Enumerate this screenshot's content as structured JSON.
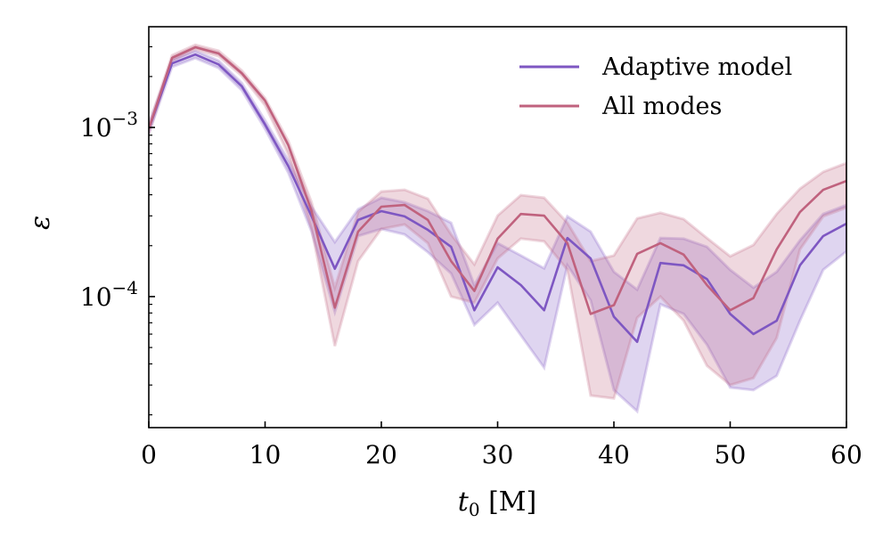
{
  "chart_data": {
    "type": "line",
    "xlabel_main": "t",
    "xlabel_sub": "0",
    "xlabel_unit": " [M]",
    "ylabel": "ε",
    "xlim": [
      0,
      60
    ],
    "ylim": [
      1.68e-05,
      0.00394
    ],
    "yscale": "log",
    "grid": false,
    "legend_position": "top-right",
    "x_ticks": [
      "0",
      "10",
      "20",
      "30",
      "40",
      "50",
      "60"
    ],
    "y_ticks": [
      {
        "base": "10",
        "exp": "−3",
        "value": 0.001
      },
      {
        "base": "10",
        "exp": "−4",
        "value": 0.0001
      }
    ],
    "x": [
      0,
      2,
      4,
      6,
      8,
      10,
      12,
      14,
      16,
      18,
      20,
      22,
      24,
      26,
      28,
      30,
      32,
      34,
      36,
      38,
      40,
      42,
      44,
      46,
      48,
      50,
      52,
      54,
      56,
      58,
      60
    ],
    "series": [
      {
        "name": "Adaptive model",
        "color": "#7e57c2",
        "values": [
          0.00098,
          0.00239,
          0.0027,
          0.00236,
          0.00175,
          0.00104,
          0.00059,
          0.000298,
          0.000146,
          0.000284,
          0.00032,
          0.000298,
          0.000248,
          0.000197,
          8.3e-05,
          0.000149,
          0.000117,
          8.3e-05,
          0.000222,
          0.000168,
          7.6e-05,
          5.4e-05,
          0.000158,
          0.000153,
          0.000127,
          7.9e-05,
          6e-05,
          7.2e-05,
          0.000153,
          0.000228,
          0.00027
        ],
        "lower": [
          0.00092,
          0.00228,
          0.00257,
          0.00225,
          0.00166,
          0.00098,
          0.00054,
          0.000242,
          8.1e-05,
          0.000228,
          0.000251,
          0.000233,
          0.000183,
          0.000137,
          6.8e-05,
          9.2e-05,
          5.9e-05,
          3.8e-05,
          0.000153,
          9.5e-05,
          2.8e-05,
          2.1e-05,
          9e-05,
          7.9e-05,
          5.2e-05,
          2.9e-05,
          2.8e-05,
          3.4e-05,
          7.2e-05,
          0.000144,
          0.000185
        ],
        "upper": [
          0.00104,
          0.00251,
          0.00284,
          0.00248,
          0.00183,
          0.0011,
          0.00064,
          0.00034,
          0.00021,
          0.000328,
          0.000384,
          0.000361,
          0.00032,
          0.000273,
          0.000117,
          0.000207,
          0.000175,
          0.000147,
          0.000298,
          0.000242,
          0.00014,
          0.00011,
          0.000222,
          0.00022,
          0.000197,
          0.000144,
          0.000113,
          0.00014,
          0.000215,
          0.000308,
          0.000348
        ]
      },
      {
        "name": "All modes",
        "color": "#c0627e",
        "values": [
          0.00098,
          0.00258,
          0.00298,
          0.00274,
          0.00209,
          0.00144,
          0.000785,
          0.00032,
          8.6e-05,
          0.000242,
          0.00034,
          0.000348,
          0.000284,
          0.000162,
          0.000108,
          0.00022,
          0.000308,
          0.000301,
          0.000207,
          7.9e-05,
          8.9e-05,
          0.000179,
          0.000207,
          0.000177,
          0.000117,
          8.3e-05,
          9.8e-05,
          0.00019,
          0.000316,
          0.000428,
          0.000483
        ],
        "lower": [
          0.00092,
          0.00248,
          0.0029,
          0.00264,
          0.00202,
          0.00135,
          0.000695,
          0.000251,
          5.1e-05,
          0.000162,
          0.000251,
          0.000267,
          0.000207,
          0.0001,
          9.2e-05,
          0.000168,
          0.00022,
          0.000212,
          0.000144,
          2.6e-05,
          2.5e-05,
          7.5e-05,
          0.0001,
          7.2e-05,
          3.9e-05,
          3e-05,
          3.3e-05,
          5.7e-05,
          0.00019,
          0.000298,
          0.000336
        ],
        "upper": [
          0.00104,
          0.00267,
          0.00308,
          0.00284,
          0.00217,
          0.00149,
          0.00083,
          0.000361,
          0.000113,
          0.000316,
          0.000418,
          0.000428,
          0.000379,
          0.000233,
          0.000155,
          0.000301,
          0.000398,
          0.000384,
          0.000273,
          0.000162,
          0.000175,
          0.00029,
          0.000313,
          0.000287,
          0.000222,
          0.000173,
          0.000202,
          0.000308,
          0.000434,
          0.000546,
          0.000616
        ]
      }
    ]
  }
}
